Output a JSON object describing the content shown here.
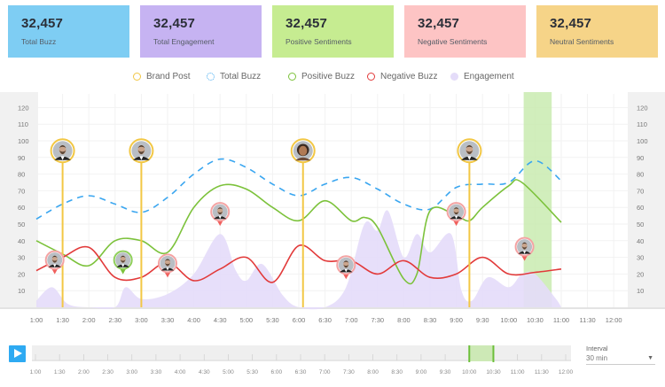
{
  "cards": [
    {
      "value": "32,457",
      "label": "Total Buzz",
      "color": "#7ecdf3"
    },
    {
      "value": "32,457",
      "label": "Total Engagement",
      "color": "#c6b3f2"
    },
    {
      "value": "32,457",
      "label": "Positive Sentiments",
      "color": "#c6ec91"
    },
    {
      "value": "32,457",
      "label": "Negative Sentiments",
      "color": "#fdc4c4"
    },
    {
      "value": "32,457",
      "label": "Neutral Sentiments",
      "color": "#f6d488"
    }
  ],
  "legend": [
    {
      "label": "Brand Post",
      "style": "ring",
      "color": "#f2c744"
    },
    {
      "label": "Total Buzz",
      "style": "dashed-ring",
      "color": "#3aa6f0"
    },
    {
      "label": "Positive Buzz",
      "style": "ring",
      "color": "#7cc23b"
    },
    {
      "label": "Negative Buzz",
      "style": "ring",
      "color": "#e23a3a"
    },
    {
      "label": "Engagement",
      "style": "filled",
      "color": "#e4dcf9"
    }
  ],
  "chart_data": {
    "type": "line",
    "title": "",
    "xlabel": "",
    "ylabel": "",
    "x_ticks": [
      "1:00",
      "1:30",
      "2:00",
      "2:30",
      "3:00",
      "3:30",
      "4:00",
      "4:30",
      "5:00",
      "5:30",
      "6:00",
      "6:30",
      "7:00",
      "7:30",
      "8:00",
      "8:30",
      "9:00",
      "9:30",
      "10:00",
      "10:30",
      "11:00",
      "11:30",
      "12:00"
    ],
    "y_ticks": [
      10,
      20,
      30,
      40,
      50,
      60,
      70,
      80,
      90,
      100,
      110,
      120
    ],
    "ylim": [
      0,
      124
    ],
    "xlim_hours": [
      1.0,
      12.0
    ],
    "grid": true,
    "y_axis_both_sides": true,
    "series": [
      {
        "name": "Total Buzz",
        "style": "dashed",
        "color": "#3aa6f0",
        "points": [
          [
            1.0,
            53
          ],
          [
            1.5,
            62
          ],
          [
            2.0,
            67
          ],
          [
            2.5,
            62
          ],
          [
            3.0,
            57
          ],
          [
            3.5,
            66
          ],
          [
            4.0,
            80
          ],
          [
            4.5,
            89
          ],
          [
            5.0,
            84
          ],
          [
            5.5,
            74
          ],
          [
            6.0,
            67
          ],
          [
            6.5,
            74
          ],
          [
            7.0,
            78
          ],
          [
            7.5,
            71
          ],
          [
            8.0,
            62
          ],
          [
            8.5,
            59
          ],
          [
            9.0,
            72
          ],
          [
            9.5,
            74
          ],
          [
            10.0,
            75
          ],
          [
            10.5,
            88
          ],
          [
            11.0,
            76
          ]
        ]
      },
      {
        "name": "Positive Buzz",
        "style": "solid",
        "color": "#7cc23b",
        "points": [
          [
            1.0,
            40
          ],
          [
            1.5,
            32
          ],
          [
            2.0,
            25
          ],
          [
            2.5,
            40
          ],
          [
            3.0,
            40
          ],
          [
            3.5,
            33
          ],
          [
            4.0,
            60
          ],
          [
            4.5,
            73
          ],
          [
            5.0,
            71
          ],
          [
            5.5,
            60
          ],
          [
            6.0,
            52
          ],
          [
            6.5,
            64
          ],
          [
            7.0,
            52
          ],
          [
            7.25,
            54
          ],
          [
            7.5,
            48
          ],
          [
            8.0,
            17
          ],
          [
            8.25,
            20
          ],
          [
            8.5,
            58
          ],
          [
            9.0,
            55
          ],
          [
            9.25,
            52
          ],
          [
            9.5,
            60
          ],
          [
            10.0,
            73
          ],
          [
            10.25,
            75
          ],
          [
            11.0,
            51
          ]
        ]
      },
      {
        "name": "Negative Buzz",
        "style": "solid",
        "color": "#e23a3a",
        "points": [
          [
            1.0,
            22
          ],
          [
            1.5,
            30
          ],
          [
            2.0,
            36
          ],
          [
            2.5,
            18
          ],
          [
            3.0,
            18
          ],
          [
            3.5,
            27
          ],
          [
            4.0,
            16
          ],
          [
            4.5,
            23
          ],
          [
            5.0,
            30
          ],
          [
            5.5,
            15
          ],
          [
            6.0,
            37
          ],
          [
            6.5,
            28
          ],
          [
            7.0,
            28
          ],
          [
            7.5,
            20
          ],
          [
            8.0,
            28
          ],
          [
            8.5,
            18
          ],
          [
            9.0,
            20
          ],
          [
            9.5,
            30
          ],
          [
            10.0,
            20
          ],
          [
            10.5,
            21
          ],
          [
            11.0,
            23
          ]
        ]
      },
      {
        "name": "Engagement",
        "style": "area",
        "color": "#e4dcf9",
        "points": [
          [
            1.0,
            4
          ],
          [
            1.3,
            12
          ],
          [
            1.6,
            2
          ],
          [
            2.0,
            0
          ],
          [
            2.5,
            0
          ],
          [
            2.7,
            12
          ],
          [
            3.0,
            5
          ],
          [
            3.5,
            8
          ],
          [
            4.0,
            20
          ],
          [
            4.5,
            44
          ],
          [
            4.8,
            22
          ],
          [
            5.0,
            16
          ],
          [
            5.3,
            26
          ],
          [
            5.7,
            7
          ],
          [
            6.0,
            0
          ],
          [
            6.5,
            0
          ],
          [
            6.9,
            12
          ],
          [
            7.25,
            50
          ],
          [
            7.5,
            46
          ],
          [
            7.7,
            58
          ],
          [
            8.0,
            30
          ],
          [
            8.25,
            44
          ],
          [
            8.5,
            33
          ],
          [
            8.9,
            44
          ],
          [
            9.1,
            10
          ],
          [
            9.3,
            4
          ],
          [
            9.6,
            18
          ],
          [
            10.0,
            12
          ],
          [
            10.25,
            20
          ],
          [
            10.5,
            20
          ],
          [
            10.9,
            5
          ],
          [
            11.0,
            0
          ]
        ]
      }
    ],
    "brand_posts": [
      {
        "time": 1.5,
        "avatar": "man"
      },
      {
        "time": 3.0,
        "avatar": "man"
      },
      {
        "time": 6.08,
        "avatar": "woman"
      },
      {
        "time": 9.25,
        "avatar": "man"
      }
    ],
    "sentiment_markers": [
      {
        "time": 1.35,
        "value": 22,
        "sentiment": "negative"
      },
      {
        "time": 2.65,
        "value": 22,
        "sentiment": "positive"
      },
      {
        "time": 3.5,
        "value": 20,
        "sentiment": "negative"
      },
      {
        "time": 4.5,
        "value": 51,
        "sentiment": "negative"
      },
      {
        "time": 6.9,
        "value": 19,
        "sentiment": "negative"
      },
      {
        "time": 9.0,
        "value": 51,
        "sentiment": "negative"
      },
      {
        "time": 10.3,
        "value": 30,
        "sentiment": "negative"
      }
    ],
    "highlight_range": [
      "10:15",
      "10:45"
    ],
    "highlight_hours": [
      10.25,
      10.75
    ]
  },
  "timeline": {
    "ticks": [
      "1:00",
      "1:30",
      "2:00",
      "2:30",
      "3:00",
      "3:30",
      "4:00",
      "4:30",
      "5:00",
      "5:30",
      "6:00",
      "6:30",
      "7:00",
      "7:30",
      "8:00",
      "8:30",
      "9:00",
      "9:30",
      "10:00",
      "10:30",
      "11:00",
      "11:30",
      "12:00"
    ],
    "selection_hours": [
      10.0,
      10.5
    ],
    "play_label": "play"
  },
  "interval": {
    "label": "Interval",
    "value": "30 min"
  }
}
